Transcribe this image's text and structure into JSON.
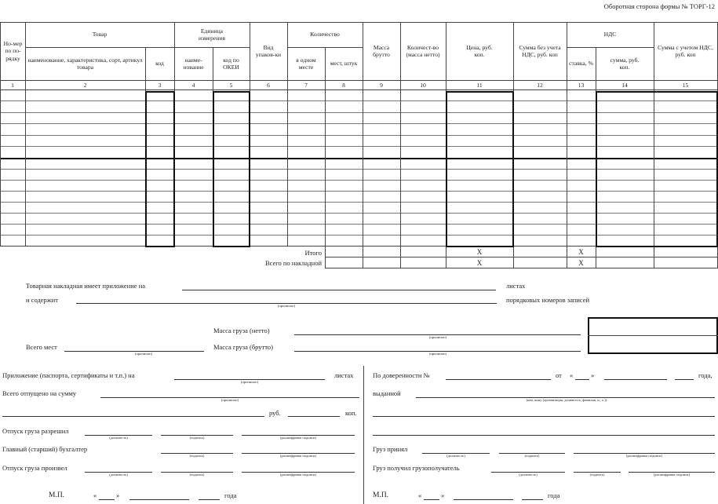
{
  "form_title": "Оборотная сторона формы № ТОРГ-12",
  "table": {
    "headers": {
      "row_number": "Но-мер по по-рядку",
      "product_group": "Товар",
      "product_name": "наименование, характеристика, сорт, артикул товара",
      "product_code": "код",
      "unit_group": "Единица измерения",
      "unit_name": "наиме-нование",
      "unit_okei": "код по ОКЕИ",
      "package_type": "Вид упаков-ки",
      "quantity_group": "Количество",
      "qty_in_one": "в одном месте",
      "qty_places": "мест, штук",
      "gross_mass": "Масса брутто",
      "net_qty": "Количест-во (масса нетто)",
      "price": "Цена, руб. коп.",
      "sum_without_vat": "Сумма без учета НДС, руб. коп",
      "vat_group": "НДС",
      "vat_rate": "ставка, %",
      "vat_sum": "сумма, руб. коп.",
      "sum_with_vat": "Сумма с учетом НДС, руб. коп"
    },
    "column_numbers": [
      "1",
      "2",
      "3",
      "4",
      "5",
      "6",
      "7",
      "8",
      "9",
      "10",
      "11",
      "12",
      "13",
      "14",
      "15"
    ],
    "total_label": "Итого",
    "grand_total_label": "Всего по накладной",
    "x_mark": "X"
  },
  "attachment": {
    "text": "Товарная накладная имеет приложение на",
    "sheets": "листах",
    "contains": "и содержит",
    "words_hint": "(прописью)",
    "records": "порядковых номеров записей"
  },
  "mass": {
    "net_label": "Масса груза (нетто)",
    "gross_label": "Масса груза (брутто)",
    "places_label": "Всего мест",
    "words_hint": "(прописью)"
  },
  "left_block": {
    "attachments": "Приложение (паспорта, сертификаты и т.п.) на",
    "sheets": "листах",
    "words_hint": "(прописью)",
    "released_sum": "Всего отпущено на сумму",
    "rub": "руб.",
    "kop": "коп.",
    "cargo_allowed": "Отпуск груза разрешил",
    "chief_accountant": "Главный (старший) бухгалтер",
    "cargo_released": "Отпуск груза произвел",
    "position_hint": "(должность)",
    "signature_hint": "(подпись)",
    "decode_hint": "(расшифровка подписи)",
    "stamp": "М.П.",
    "quote_open": "«",
    "quote_close": "»",
    "year": "года"
  },
  "right_block": {
    "proxy": "По доверенности №",
    "from": "от",
    "year_short": "года,",
    "issued": "выданной",
    "issued_hint": "(кем, кому (организация, должность, фамилия, и., о.))",
    "cargo_accepted": "Груз принял",
    "cargo_received": "Груз получил грузополучатель",
    "position_hint": "(должность)",
    "signature_hint": "(подпись)",
    "decode_hint": "(расшифровка подписи)",
    "stamp": "М.П.",
    "quote_open": "«",
    "quote_close": "»",
    "year": "года"
  }
}
